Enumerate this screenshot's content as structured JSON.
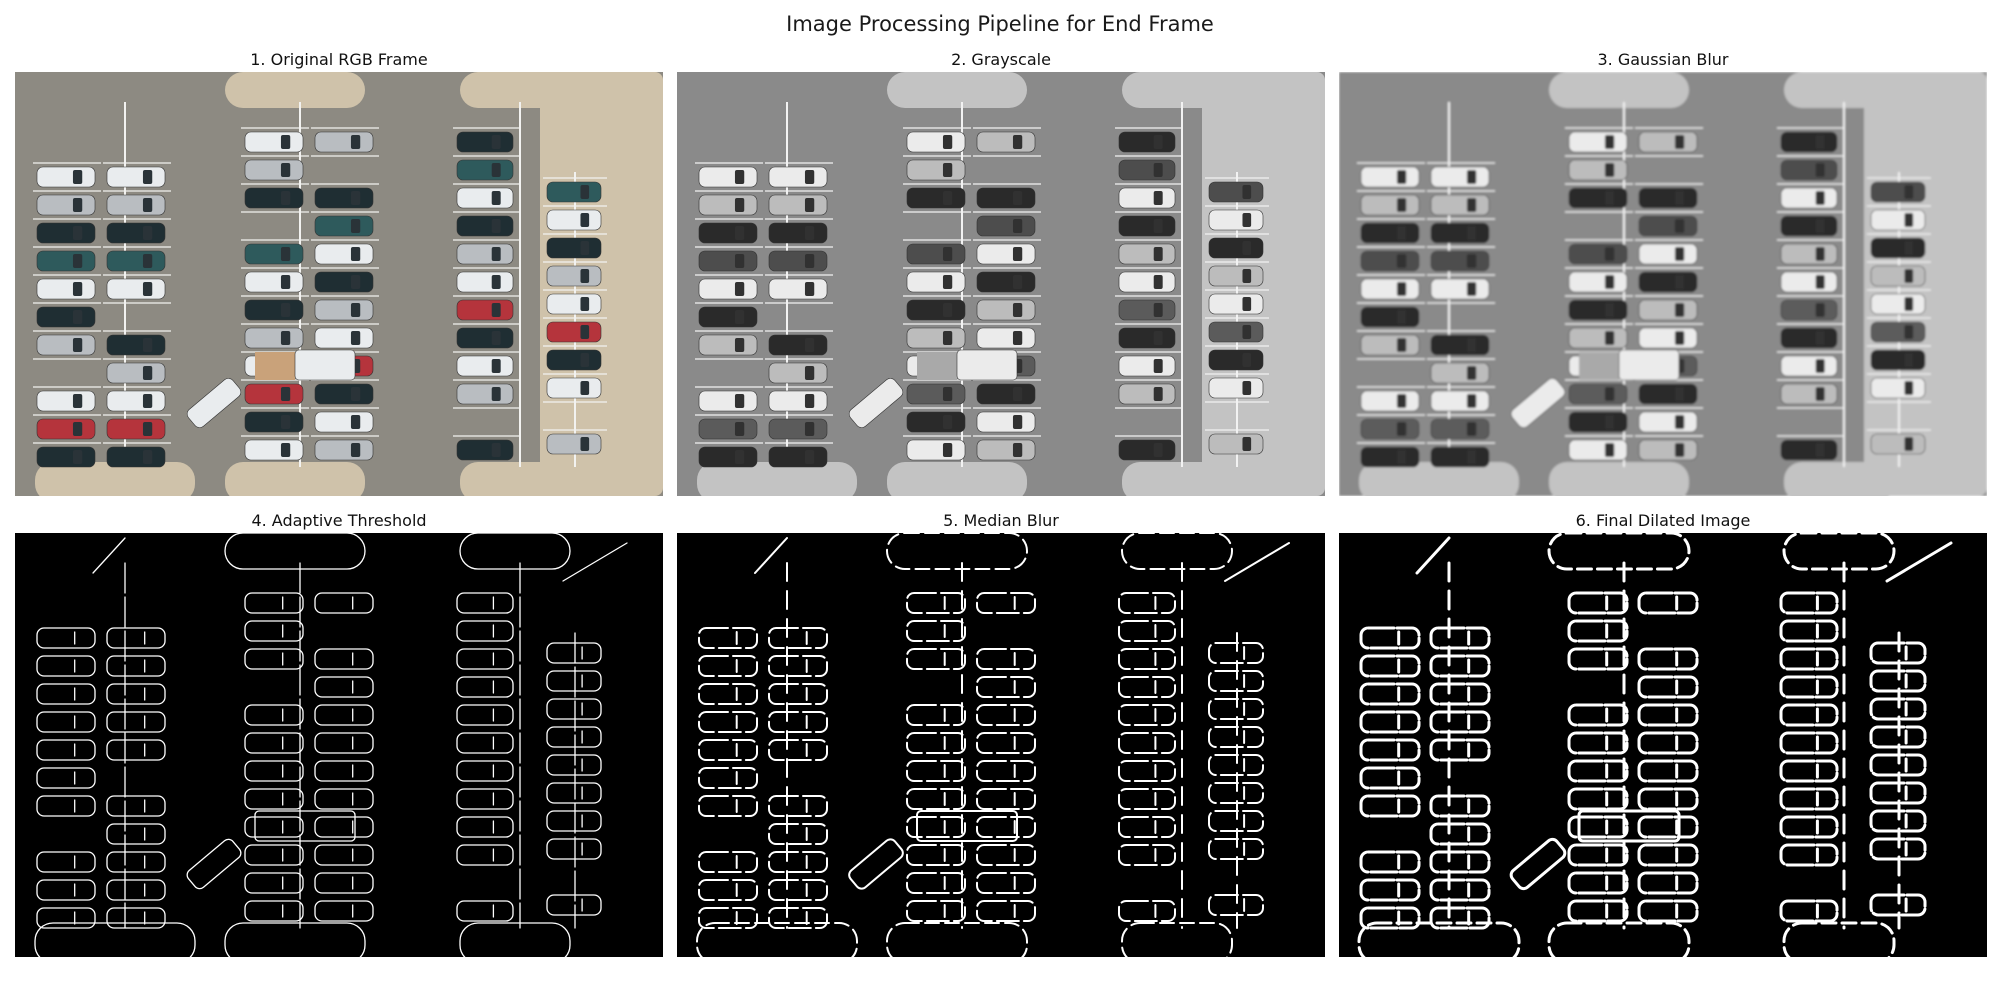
{
  "figure": {
    "title": "Image Processing Pipeline for End Frame"
  },
  "panels": [
    {
      "title": "1. Original RGB Frame",
      "mode": "rgb"
    },
    {
      "title": "2. Grayscale",
      "mode": "gray"
    },
    {
      "title": "3. Gaussian Blur",
      "mode": "blur"
    },
    {
      "title": "4. Adaptive Threshold",
      "mode": "thresh"
    },
    {
      "title": "5. Median Blur",
      "mode": "median"
    },
    {
      "title": "6. Final Dilated Image",
      "mode": "dilate"
    }
  ],
  "colors": {
    "asphalt": "#8d8a82",
    "island": "#cfc2aa",
    "stripe": "#f2f2f0",
    "car_white": "#e9ecee",
    "car_silver": "#b9bdc1",
    "car_dark": "#1f2e33",
    "car_teal": "#2e5a5c",
    "car_red": "#b5343c",
    "truck_bed": "#c9a27a"
  }
}
